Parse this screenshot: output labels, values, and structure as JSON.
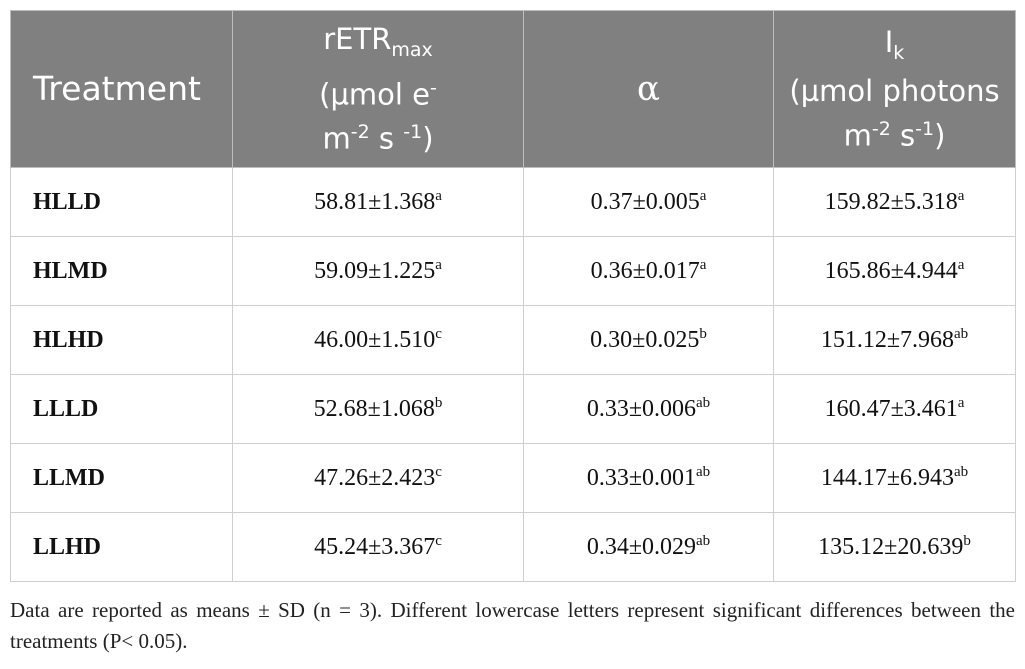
{
  "table": {
    "header": [
      [
        "Treatment"
      ],
      [
        "rETR",
        "max",
        "(µmol e",
        "-",
        "m",
        "-2",
        "s",
        "-1",
        ")"
      ],
      [
        "α"
      ],
      [
        "I",
        "k",
        "(µmol photons",
        "m",
        "-2",
        "s",
        "-1",
        ")"
      ]
    ],
    "rows": [
      {
        "treatment": "HLLD",
        "cells": [
          {
            "value": "58.81±1.368",
            "letters": "a"
          },
          {
            "value": "0.37±0.005",
            "letters": "a"
          },
          {
            "value": "159.82±5.318",
            "letters": "a"
          }
        ]
      },
      {
        "treatment": "HLMD",
        "cells": [
          {
            "value": "59.09±1.225",
            "letters": "a"
          },
          {
            "value": "0.36±0.017",
            "letters": "a"
          },
          {
            "value": "165.86±4.944",
            "letters": "a"
          }
        ]
      },
      {
        "treatment": "HLHD",
        "cells": [
          {
            "value": "46.00±1.510",
            "letters": "c"
          },
          {
            "value": "0.30±0.025",
            "letters": "b"
          },
          {
            "value": "151.12±7.968",
            "letters": "ab"
          }
        ]
      },
      {
        "treatment": "LLLD",
        "cells": [
          {
            "value": "52.68±1.068",
            "letters": "b"
          },
          {
            "value": "0.33±0.006",
            "letters": "ab"
          },
          {
            "value": "160.47±3.461",
            "letters": "a"
          }
        ]
      },
      {
        "treatment": "LLMD",
        "cells": [
          {
            "value": "47.26±2.423",
            "letters": "c"
          },
          {
            "value": "0.33±0.001",
            "letters": "ab"
          },
          {
            "value": "144.17±6.943",
            "letters": "ab"
          }
        ]
      },
      {
        "treatment": "LLHD",
        "cells": [
          {
            "value": "45.24±3.367",
            "letters": "c"
          },
          {
            "value": "0.34±0.029",
            "letters": "ab"
          },
          {
            "value": "135.12±20.639",
            "letters": "b"
          }
        ]
      }
    ],
    "footnote": "Data are reported as means ± SD (n = 3). Different lowercase letters represent significant differences between the treatments (P< 0.05)."
  }
}
